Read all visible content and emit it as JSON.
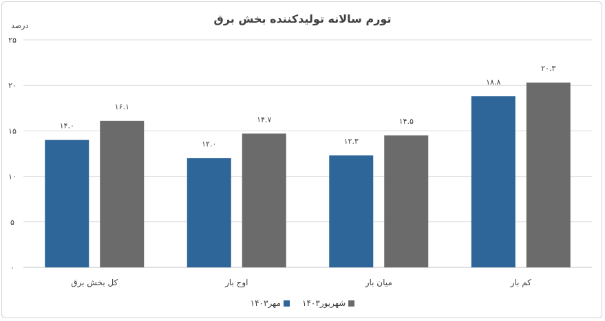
{
  "colors": {
    "mehr": "#2E6699",
    "shahrivar": "#6B6B6B",
    "grid": "#d9d9d9",
    "text": "#404040"
  },
  "chart_data": {
    "type": "bar",
    "title": "تورم سالانه تولیدکننده بخش برق",
    "ylabel": "درصد",
    "ylim": [
      0,
      25
    ],
    "yticks": [
      "۰",
      "۵",
      "۱۰",
      "۱۵",
      "۲۰",
      "۲۵"
    ],
    "ytick_values": [
      0,
      5,
      10,
      15,
      20,
      25
    ],
    "grid": true,
    "legend_position": "bottom",
    "categories": [
      "کل بخش برق",
      "اوج بار",
      "میان بار",
      "کم بار"
    ],
    "series": [
      {
        "name": "مهر۱۴۰۳",
        "color": "#2E6699",
        "values": [
          14.0,
          12.0,
          12.3,
          18.8
        ],
        "labels": [
          "۱۴.۰",
          "۱۲.۰",
          "۱۲.۳",
          "۱۸.۸"
        ]
      },
      {
        "name": "شهریور۱۴۰۳",
        "color": "#6B6B6B",
        "values": [
          16.1,
          14.7,
          14.5,
          20.3
        ],
        "labels": [
          "۱۶.۱",
          "۱۴.۷",
          "۱۴.۵",
          "۲۰.۳"
        ]
      }
    ]
  }
}
